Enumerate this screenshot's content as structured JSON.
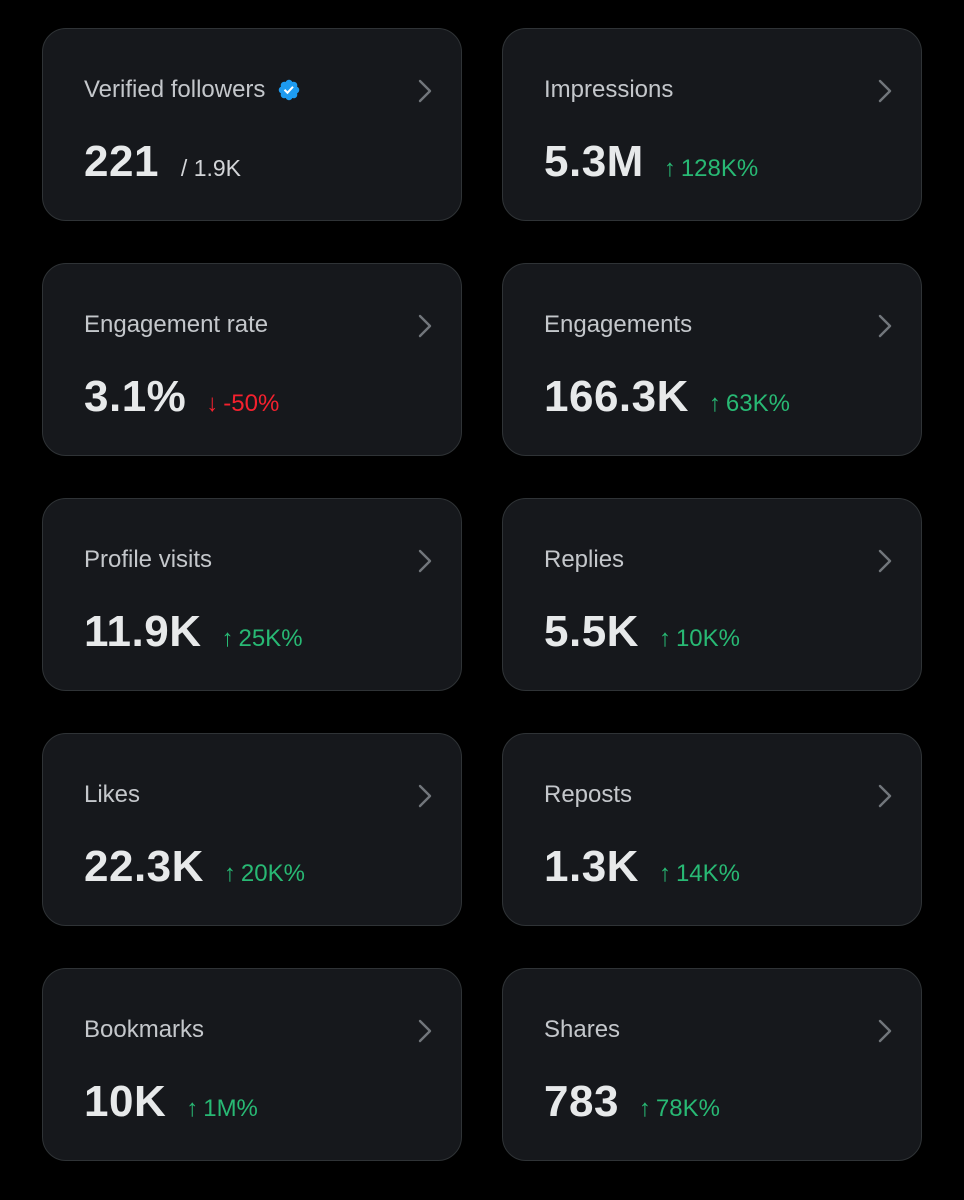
{
  "cards": [
    {
      "title": "Verified followers",
      "value": "221",
      "sub": "/ 1.9K",
      "verified_icon": "verified-badge-icon",
      "accent": "#1d9bf0"
    },
    {
      "title": "Impressions",
      "value": "5.3M",
      "change": "128K%",
      "direction": "up"
    },
    {
      "title": "Engagement rate",
      "value": "3.1%",
      "change": "-50%",
      "direction": "down"
    },
    {
      "title": "Engagements",
      "value": "166.3K",
      "change": "63K%",
      "direction": "up"
    },
    {
      "title": "Profile visits",
      "value": "11.9K",
      "change": "25K%",
      "direction": "up"
    },
    {
      "title": "Replies",
      "value": "5.5K",
      "change": "10K%",
      "direction": "up"
    },
    {
      "title": "Likes",
      "value": "22.3K",
      "change": "20K%",
      "direction": "up"
    },
    {
      "title": "Reposts",
      "value": "1.3K",
      "change": "14K%",
      "direction": "up"
    },
    {
      "title": "Bookmarks",
      "value": "10K",
      "change": "1M%",
      "direction": "up"
    },
    {
      "title": "Shares",
      "value": "783",
      "change": "78K%",
      "direction": "up"
    }
  ],
  "colors": {
    "background": "#000000",
    "card_background": "#16181c",
    "card_border": "#2f3336",
    "up": "#28b974",
    "down": "#f4212e",
    "verified": "#1d9bf0"
  },
  "icons": {
    "arrow_up": "↑",
    "arrow_down": "↓",
    "chevron": "chevron-right-icon"
  }
}
